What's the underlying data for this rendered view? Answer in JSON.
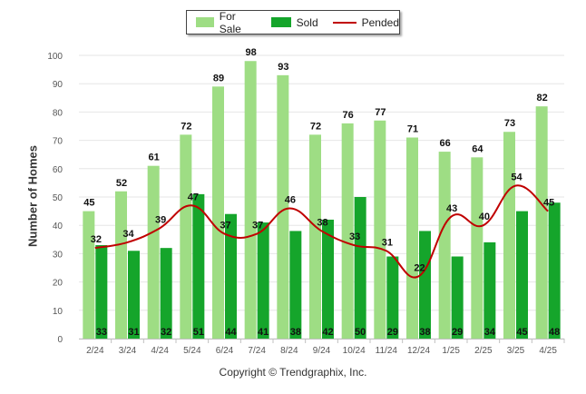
{
  "legend": {
    "for_sale": "For Sale",
    "sold": "Sold",
    "pended": "Pended"
  },
  "colors": {
    "for_sale": "#9edd84",
    "sold": "#15a52b",
    "pended": "#c00000",
    "grid": "#e6e6e6",
    "axis_text": "#555555"
  },
  "footer": {
    "copyright": "Copyright © Trendgraphix, Inc."
  },
  "chart_data": {
    "type": "bar",
    "categories": [
      "2/24",
      "3/24",
      "4/24",
      "5/24",
      "6/24",
      "7/24",
      "8/24",
      "9/24",
      "10/24",
      "11/24",
      "12/24",
      "1/25",
      "2/25",
      "3/25",
      "4/25"
    ],
    "series": [
      {
        "name": "For Sale",
        "type": "bar",
        "values": [
          45,
          52,
          61,
          72,
          89,
          98,
          93,
          72,
          76,
          77,
          71,
          66,
          64,
          73,
          82
        ]
      },
      {
        "name": "Sold",
        "type": "bar",
        "values": [
          33,
          31,
          32,
          51,
          44,
          41,
          38,
          42,
          50,
          29,
          38,
          29,
          34,
          45,
          48
        ]
      },
      {
        "name": "Pended",
        "type": "line",
        "values": [
          32,
          34,
          39,
          47,
          37,
          37,
          46,
          38,
          33,
          31,
          22,
          43,
          40,
          54,
          45
        ]
      }
    ],
    "ylabel": "Number of Homes",
    "xlabel": "",
    "ylim": [
      0,
      100
    ],
    "yticks": [
      0,
      10,
      20,
      30,
      40,
      50,
      60,
      70,
      80,
      90,
      100
    ],
    "grid": true,
    "legend_position": "top-center"
  }
}
